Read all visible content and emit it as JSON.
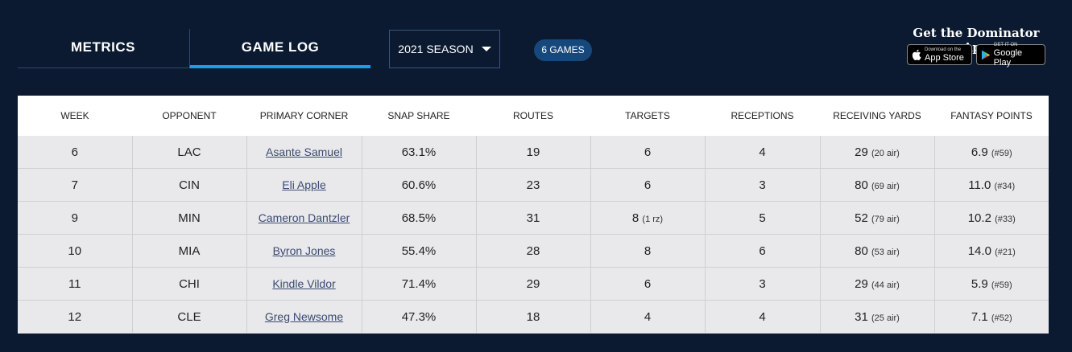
{
  "tabs": [
    {
      "label": "METRICS"
    },
    {
      "label": "GAME LOG"
    }
  ],
  "season": {
    "label": "2021 SEASON"
  },
  "games_badge": "6 GAMES",
  "app_promo": {
    "title": "Get the Dominator App",
    "apple_small": "Download on the",
    "apple_big": "App Store",
    "google_small": "GET IT ON",
    "google_big": "Google Play"
  },
  "table": {
    "headers": [
      "WEEK",
      "OPPONENT",
      "PRIMARY CORNER",
      "SNAP SHARE",
      "ROUTES",
      "TARGETS",
      "RECEPTIONS",
      "RECEIVING YARDS",
      "FANTASY POINTS"
    ],
    "rows": [
      {
        "week": "6",
        "opp": "LAC",
        "corner": "Asante Samuel",
        "snap": "63.1%",
        "routes": "19",
        "targets": "6",
        "targets_sub": "",
        "rec": "4",
        "yards": "29",
        "yards_sub": "(20 air)",
        "fp": "6.9",
        "fp_sub": "(#59)"
      },
      {
        "week": "7",
        "opp": "CIN",
        "corner": "Eli Apple",
        "snap": "60.6%",
        "routes": "23",
        "targets": "6",
        "targets_sub": "",
        "rec": "3",
        "yards": "80",
        "yards_sub": "(69 air)",
        "fp": "11.0",
        "fp_sub": "(#34)"
      },
      {
        "week": "9",
        "opp": "MIN",
        "corner": "Cameron Dantzler",
        "snap": "68.5%",
        "routes": "31",
        "targets": "8",
        "targets_sub": "(1 rz)",
        "rec": "5",
        "yards": "52",
        "yards_sub": "(79 air)",
        "fp": "10.2",
        "fp_sub": "(#33)"
      },
      {
        "week": "10",
        "opp": "MIA",
        "corner": "Byron Jones",
        "snap": "55.4%",
        "routes": "28",
        "targets": "8",
        "targets_sub": "",
        "rec": "6",
        "yards": "80",
        "yards_sub": "(53 air)",
        "fp": "14.0",
        "fp_sub": "(#21)"
      },
      {
        "week": "11",
        "opp": "CHI",
        "corner": "Kindle Vildor",
        "snap": "71.4%",
        "routes": "29",
        "targets": "6",
        "targets_sub": "",
        "rec": "3",
        "yards": "29",
        "yards_sub": "(44 air)",
        "fp": "5.9",
        "fp_sub": "(#59)"
      },
      {
        "week": "12",
        "opp": "CLE",
        "corner": "Greg Newsome",
        "snap": "47.3%",
        "routes": "18",
        "targets": "4",
        "targets_sub": "",
        "rec": "4",
        "yards": "31",
        "yards_sub": "(25 air)",
        "fp": "7.1",
        "fp_sub": "(#52)"
      }
    ]
  },
  "colors": {
    "background": "#0b1a30",
    "accent": "#1d9ce8",
    "badge": "#17487b",
    "row_bg": "#e9e9eb"
  }
}
